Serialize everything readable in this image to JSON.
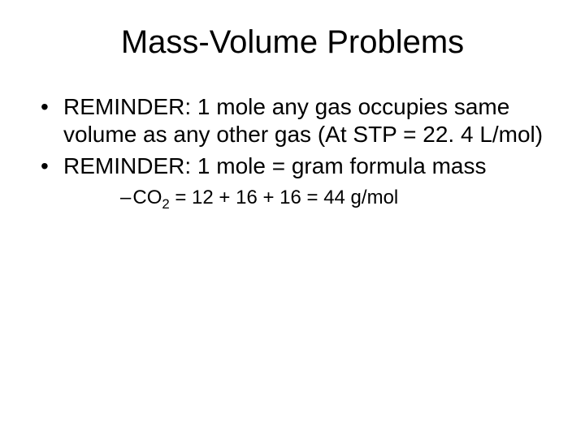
{
  "title": "Mass-Volume Problems",
  "bullets": [
    "REMINDER: 1 mole any gas occupies same volume as any other gas  (At STP = 22. 4 L/mol)",
    "REMINDER: 1 mole = gram formula mass"
  ],
  "sub": {
    "dash": "–",
    "co_prefix": "CO",
    "co_sub": "2",
    "co_suffix": " = 12 + 16 + 16 = 44 g/mol"
  },
  "style": {
    "background_color": "#ffffff",
    "text_color": "#000000",
    "title_fontsize": 40,
    "body_fontsize": 28,
    "sub_fontsize": 24,
    "font_family": "Arial"
  }
}
